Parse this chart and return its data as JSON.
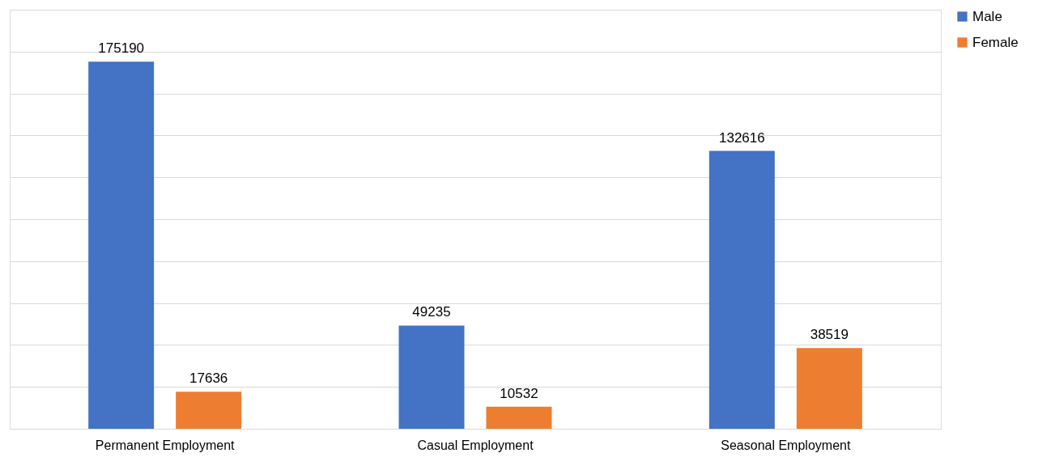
{
  "chart_data": {
    "type": "bar",
    "categories": [
      "Permanent Employment",
      "Casual Employment",
      "Seasonal Employment"
    ],
    "series": [
      {
        "name": "Male",
        "color": "#4472c4",
        "values": [
          175190,
          49235,
          132616
        ]
      },
      {
        "name": "Female",
        "color": "#ed7d31",
        "values": [
          17636,
          10532,
          38519
        ]
      }
    ],
    "ylim": [
      0,
      200000
    ],
    "yticks": [
      {
        "value": 0,
        "label": null
      },
      {
        "value": 20000,
        "label": null
      },
      {
        "value": 40000,
        "label": null
      },
      {
        "value": 60000,
        "label": null
      },
      {
        "value": 80000,
        "label": null
      },
      {
        "value": 100000,
        "label": null
      },
      {
        "value": 120000,
        "label": null
      },
      {
        "value": 140000,
        "label": null
      },
      {
        "value": 160000,
        "label": null
      },
      {
        "value": 180000,
        "label": null
      },
      {
        "value": 200000,
        "label": null
      }
    ],
    "tick_labels": "x",
    "grid": "y",
    "legend": "right",
    "data_labels": true
  }
}
